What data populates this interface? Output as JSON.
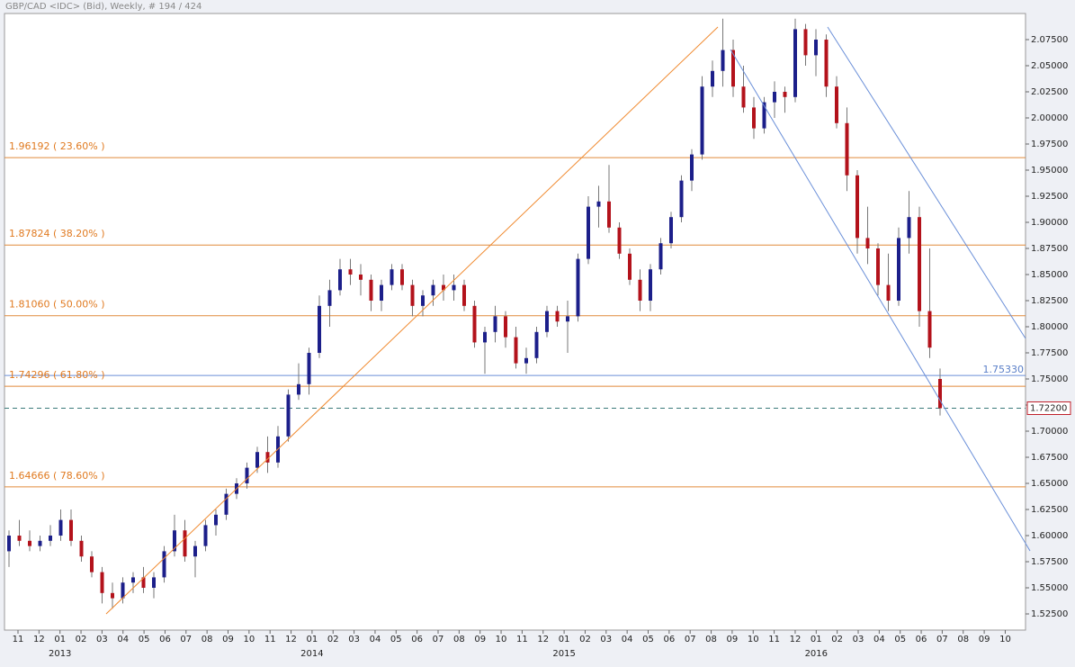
{
  "chart_data": {
    "type": "candlestick",
    "title": "GBP/CAD <IDC> (Bid), Weekly, # 194 / 424",
    "up_color": "#1c1f8a",
    "down_color": "#b3121b",
    "ylim": [
      1.5095,
      2.1
    ],
    "yticks": [
      {
        "value": 1.525,
        "label": "1.52500"
      },
      {
        "value": 1.55,
        "label": "1.55000"
      },
      {
        "value": 1.575,
        "label": "1.57500"
      },
      {
        "value": 1.6,
        "label": "1.60000"
      },
      {
        "value": 1.625,
        "label": "1.62500"
      },
      {
        "value": 1.65,
        "label": "1.65000"
      },
      {
        "value": 1.675,
        "label": "1.67500"
      },
      {
        "value": 1.7,
        "label": "1.70000"
      },
      {
        "value": 1.725,
        "label": "1.72500"
      },
      {
        "value": 1.75,
        "label": "1.75000"
      },
      {
        "value": 1.775,
        "label": "1.77500"
      },
      {
        "value": 1.8,
        "label": "1.80000"
      },
      {
        "value": 1.825,
        "label": "1.82500"
      },
      {
        "value": 1.85,
        "label": "1.85000"
      },
      {
        "value": 1.875,
        "label": "1.87500"
      },
      {
        "value": 1.9,
        "label": "1.90000"
      },
      {
        "value": 1.925,
        "label": "1.92500"
      },
      {
        "value": 1.95,
        "label": "1.95000"
      },
      {
        "value": 1.975,
        "label": "1.97500"
      },
      {
        "value": 2.0,
        "label": "2.00000"
      },
      {
        "value": 2.025,
        "label": "2.02500"
      },
      {
        "value": 2.05,
        "label": "2.05000"
      },
      {
        "value": 2.075,
        "label": "2.07500"
      }
    ],
    "months": [
      "11",
      "12",
      "01",
      "02",
      "03",
      "04",
      "05",
      "06",
      "07",
      "08",
      "09",
      "10",
      "11",
      "12",
      "01",
      "02",
      "03",
      "04",
      "05",
      "06",
      "07",
      "08",
      "09",
      "10",
      "11",
      "12",
      "01",
      "02",
      "03",
      "04",
      "05",
      "06",
      "07",
      "08",
      "09",
      "10",
      "11",
      "12",
      "01",
      "02",
      "03",
      "04",
      "05",
      "06",
      "07",
      "08",
      "09",
      "10"
    ],
    "years": [
      {
        "month_index": 2,
        "label": "2013"
      },
      {
        "month_index": 14,
        "label": "2014"
      },
      {
        "month_index": 26,
        "label": "2015"
      },
      {
        "month_index": 38,
        "label": "2016"
      }
    ],
    "fib_levels": [
      {
        "value": 1.96192,
        "label": "1.96192 ( 23.60% )"
      },
      {
        "value": 1.87824,
        "label": "1.87824 ( 38.20% )"
      },
      {
        "value": 1.8106,
        "label": "1.81060 ( 50.00% )"
      },
      {
        "value": 1.74296,
        "label": "1.74296 ( 61.80% )"
      },
      {
        "value": 1.64666,
        "label": "1.64666 ( 78.60% )"
      }
    ],
    "level_line": {
      "value": 1.7533,
      "label": "1.75330"
    },
    "last_price": {
      "value": 1.722,
      "label": "1.72200"
    },
    "candles": [
      [
        1.585,
        1.605,
        1.57,
        1.6
      ],
      [
        1.6,
        1.615,
        1.59,
        1.595
      ],
      [
        1.595,
        1.605,
        1.585,
        1.59
      ],
      [
        1.59,
        1.6,
        1.585,
        1.595
      ],
      [
        1.595,
        1.61,
        1.59,
        1.6
      ],
      [
        1.6,
        1.625,
        1.595,
        1.615
      ],
      [
        1.615,
        1.625,
        1.59,
        1.595
      ],
      [
        1.595,
        1.6,
        1.575,
        1.58
      ],
      [
        1.58,
        1.585,
        1.56,
        1.565
      ],
      [
        1.565,
        1.57,
        1.535,
        1.545
      ],
      [
        1.545,
        1.555,
        1.53,
        1.54
      ],
      [
        1.54,
        1.56,
        1.535,
        1.555
      ],
      [
        1.555,
        1.565,
        1.545,
        1.56
      ],
      [
        1.56,
        1.57,
        1.545,
        1.55
      ],
      [
        1.55,
        1.565,
        1.54,
        1.56
      ],
      [
        1.56,
        1.59,
        1.555,
        1.585
      ],
      [
        1.585,
        1.62,
        1.58,
        1.605
      ],
      [
        1.605,
        1.615,
        1.575,
        1.58
      ],
      [
        1.58,
        1.595,
        1.56,
        1.59
      ],
      [
        1.59,
        1.615,
        1.585,
        1.61
      ],
      [
        1.61,
        1.625,
        1.6,
        1.62
      ],
      [
        1.62,
        1.645,
        1.615,
        1.64
      ],
      [
        1.64,
        1.655,
        1.635,
        1.65
      ],
      [
        1.65,
        1.67,
        1.645,
        1.665
      ],
      [
        1.665,
        1.685,
        1.66,
        1.68
      ],
      [
        1.68,
        1.695,
        1.66,
        1.67
      ],
      [
        1.67,
        1.705,
        1.665,
        1.695
      ],
      [
        1.695,
        1.74,
        1.69,
        1.735
      ],
      [
        1.735,
        1.765,
        1.73,
        1.745
      ],
      [
        1.745,
        1.78,
        1.735,
        1.775
      ],
      [
        1.775,
        1.83,
        1.77,
        1.82
      ],
      [
        1.82,
        1.845,
        1.8,
        1.835
      ],
      [
        1.835,
        1.865,
        1.83,
        1.855
      ],
      [
        1.855,
        1.865,
        1.84,
        1.85
      ],
      [
        1.85,
        1.86,
        1.83,
        1.845
      ],
      [
        1.845,
        1.85,
        1.815,
        1.825
      ],
      [
        1.825,
        1.845,
        1.815,
        1.84
      ],
      [
        1.84,
        1.86,
        1.835,
        1.855
      ],
      [
        1.855,
        1.86,
        1.835,
        1.84
      ],
      [
        1.84,
        1.845,
        1.81,
        1.82
      ],
      [
        1.82,
        1.835,
        1.81,
        1.83
      ],
      [
        1.83,
        1.845,
        1.82,
        1.84
      ],
      [
        1.84,
        1.85,
        1.825,
        1.835
      ],
      [
        1.835,
        1.85,
        1.825,
        1.84
      ],
      [
        1.84,
        1.845,
        1.815,
        1.82
      ],
      [
        1.82,
        1.825,
        1.78,
        1.785
      ],
      [
        1.785,
        1.8,
        1.755,
        1.795
      ],
      [
        1.795,
        1.82,
        1.785,
        1.81
      ],
      [
        1.81,
        1.815,
        1.78,
        1.79
      ],
      [
        1.79,
        1.8,
        1.76,
        1.765
      ],
      [
        1.765,
        1.78,
        1.755,
        1.77
      ],
      [
        1.77,
        1.8,
        1.765,
        1.795
      ],
      [
        1.795,
        1.82,
        1.79,
        1.815
      ],
      [
        1.815,
        1.82,
        1.8,
        1.805
      ],
      [
        1.805,
        1.825,
        1.775,
        1.81
      ],
      [
        1.81,
        1.87,
        1.805,
        1.865
      ],
      [
        1.865,
        1.925,
        1.86,
        1.915
      ],
      [
        1.915,
        1.935,
        1.895,
        1.92
      ],
      [
        1.92,
        1.955,
        1.89,
        1.895
      ],
      [
        1.895,
        1.9,
        1.865,
        1.87
      ],
      [
        1.87,
        1.875,
        1.84,
        1.845
      ],
      [
        1.845,
        1.855,
        1.815,
        1.825
      ],
      [
        1.825,
        1.86,
        1.815,
        1.855
      ],
      [
        1.855,
        1.885,
        1.85,
        1.88
      ],
      [
        1.88,
        1.91,
        1.875,
        1.905
      ],
      [
        1.905,
        1.945,
        1.9,
        1.94
      ],
      [
        1.94,
        1.97,
        1.93,
        1.965
      ],
      [
        1.965,
        2.04,
        1.96,
        2.03
      ],
      [
        2.03,
        2.055,
        2.02,
        2.045
      ],
      [
        2.045,
        2.095,
        2.03,
        2.065
      ],
      [
        2.065,
        2.075,
        2.02,
        2.03
      ],
      [
        2.03,
        2.05,
        2.005,
        2.01
      ],
      [
        2.01,
        2.02,
        1.98,
        1.99
      ],
      [
        1.99,
        2.02,
        1.985,
        2.015
      ],
      [
        2.015,
        2.035,
        2.0,
        2.025
      ],
      [
        2.025,
        2.03,
        2.005,
        2.02
      ],
      [
        2.02,
        2.095,
        2.015,
        2.085
      ],
      [
        2.085,
        2.09,
        2.05,
        2.06
      ],
      [
        2.06,
        2.085,
        2.04,
        2.075
      ],
      [
        2.075,
        2.08,
        2.02,
        2.03
      ],
      [
        2.03,
        2.04,
        1.99,
        1.995
      ],
      [
        1.995,
        2.01,
        1.93,
        1.945
      ],
      [
        1.945,
        1.95,
        1.87,
        1.885
      ],
      [
        1.885,
        1.915,
        1.86,
        1.875
      ],
      [
        1.875,
        1.88,
        1.83,
        1.84
      ],
      [
        1.84,
        1.87,
        1.815,
        1.825
      ],
      [
        1.825,
        1.895,
        1.82,
        1.885
      ],
      [
        1.885,
        1.93,
        1.87,
        1.905
      ],
      [
        1.905,
        1.915,
        1.8,
        1.815
      ],
      [
        1.815,
        1.875,
        1.77,
        1.78
      ],
      [
        1.75,
        1.76,
        1.715,
        1.722
      ]
    ]
  }
}
